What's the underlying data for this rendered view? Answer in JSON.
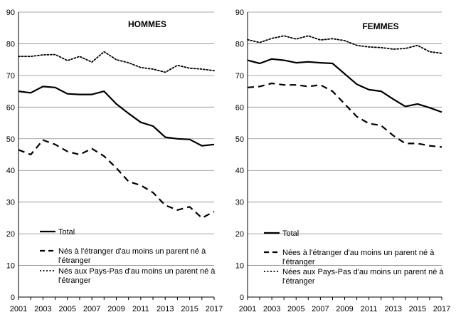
{
  "chart_data": [
    {
      "type": "line",
      "title": "HOMMES",
      "x": [
        2001,
        2002,
        2003,
        2004,
        2005,
        2006,
        2007,
        2008,
        2009,
        2010,
        2011,
        2012,
        2013,
        2014,
        2015,
        2016,
        2017
      ],
      "xticks": [
        "2001",
        "2003",
        "2005",
        "2007",
        "2009",
        "2011",
        "2013",
        "2015",
        "2017"
      ],
      "yticks": [
        "0",
        "10",
        "20",
        "30",
        "40",
        "50",
        "60",
        "70",
        "80",
        "90"
      ],
      "ylim": [
        0,
        90
      ],
      "grid": true,
      "series": [
        {
          "name": "Total",
          "style": "solid",
          "values": [
            65.0,
            64.5,
            66.5,
            66.2,
            64.2,
            64.0,
            64.0,
            65.0,
            61.0,
            58.0,
            55.2,
            54.0,
            50.5,
            50.0,
            49.8,
            47.8,
            48.2
          ]
        },
        {
          "name": "Nés à l'étranger d'au moins un parent né à l'étranger",
          "legend_lines": [
            "Nés à l'étranger d'au moins un parent né à",
            "l'étranger"
          ],
          "style": "dashed",
          "values": [
            46.5,
            45.0,
            49.6,
            48.2,
            46.0,
            45.0,
            46.9,
            44.5,
            40.8,
            36.5,
            35.3,
            33.0,
            29.0,
            27.5,
            28.5,
            25.0,
            27.0
          ]
        },
        {
          "name": "Nés aux Pays-Pas d'au moins un parent né à l'étranger",
          "legend_lines": [
            "Nés aux Pays-Pas d'au moins un parent né à",
            "l'étranger"
          ],
          "style": "dotted",
          "values": [
            76.0,
            76.0,
            76.5,
            76.6,
            74.7,
            76.0,
            74.2,
            77.5,
            75.0,
            74.0,
            72.5,
            72.0,
            71.0,
            73.2,
            72.3,
            72.0,
            71.5
          ]
        }
      ]
    },
    {
      "type": "line",
      "title": "FEMMES",
      "x": [
        2001,
        2002,
        2003,
        2004,
        2005,
        2006,
        2007,
        2008,
        2009,
        2010,
        2011,
        2012,
        2013,
        2014,
        2015,
        2016,
        2017
      ],
      "xticks": [
        "2001",
        "2003",
        "2005",
        "2007",
        "2009",
        "2011",
        "2013",
        "2015",
        "2017"
      ],
      "yticks": [
        "0",
        "10",
        "20",
        "30",
        "40",
        "50",
        "60",
        "70",
        "80",
        "90"
      ],
      "ylim": [
        0,
        90
      ],
      "grid": true,
      "series": [
        {
          "name": "Total",
          "style": "solid",
          "values": [
            74.8,
            73.8,
            75.2,
            74.8,
            74.0,
            74.3,
            74.0,
            73.8,
            70.5,
            67.2,
            65.5,
            65.0,
            62.5,
            60.2,
            61.0,
            59.8,
            58.4
          ]
        },
        {
          "name": "Nées à l'étranger d'au moins un parent né à l'étranger",
          "legend_lines": [
            "Nées à l'étranger d'au moins un parent né à",
            "l'étranger"
          ],
          "style": "dashed",
          "values": [
            66.2,
            66.5,
            67.5,
            67.0,
            67.0,
            66.5,
            67.0,
            65.0,
            61.0,
            57.0,
            54.8,
            54.2,
            51.0,
            48.5,
            48.5,
            47.8,
            47.4
          ]
        },
        {
          "name": "Nées aux Pays-Pas d'au moins un parent né à l'étranger",
          "legend_lines": [
            "Nées aux Pays-Pas d'au moins un parent né à",
            "l'étranger"
          ],
          "style": "dotted",
          "values": [
            81.3,
            80.4,
            81.7,
            82.5,
            81.5,
            82.5,
            81.2,
            81.6,
            81.0,
            79.5,
            79.0,
            78.8,
            78.3,
            78.5,
            79.5,
            77.5,
            77.0
          ]
        }
      ]
    }
  ]
}
